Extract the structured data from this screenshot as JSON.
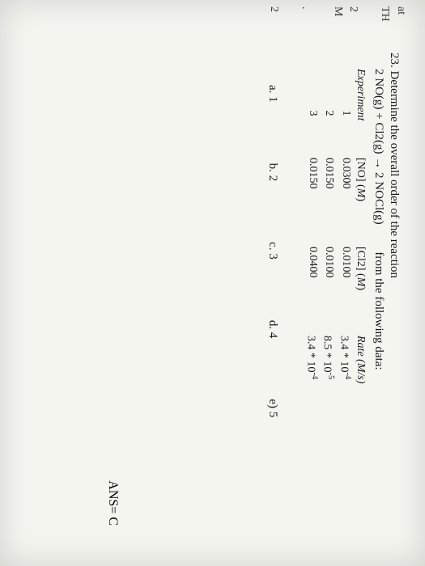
{
  "margin": {
    "line1": "at",
    "line2": "TH",
    "line3": "2",
    "line4": "M",
    "line5": ".",
    "line6": "2"
  },
  "question": {
    "number": "23.",
    "text": "Determine the overall order of the reaction",
    "reaction": "2 NO(g) + Cl2(g) → 2 NOCl(g)",
    "from": "from the following data:"
  },
  "table": {
    "headers": {
      "exp": "Experiment",
      "no": "[NO] (M)",
      "cl2": "[Cl2] (M)",
      "rate": "Rate (M/s)"
    },
    "rows": [
      {
        "exp": "1",
        "no": "0.0300",
        "cl2": "0.0100",
        "rate_base": "3.4",
        "rate_exp": "-4"
      },
      {
        "exp": "2",
        "no": "0.0150",
        "cl2": "0.0100",
        "rate_base": "8.5",
        "rate_exp": "-5"
      },
      {
        "exp": "3",
        "no": "0.0150",
        "cl2": "0.0400",
        "rate_base": "3.4",
        "rate_exp": "-4"
      }
    ]
  },
  "choices": {
    "a": "a. 1",
    "b": "b. 2",
    "c": "c. 3",
    "d": "d. 4",
    "e": "e) 5"
  },
  "answer": "ANS= C"
}
